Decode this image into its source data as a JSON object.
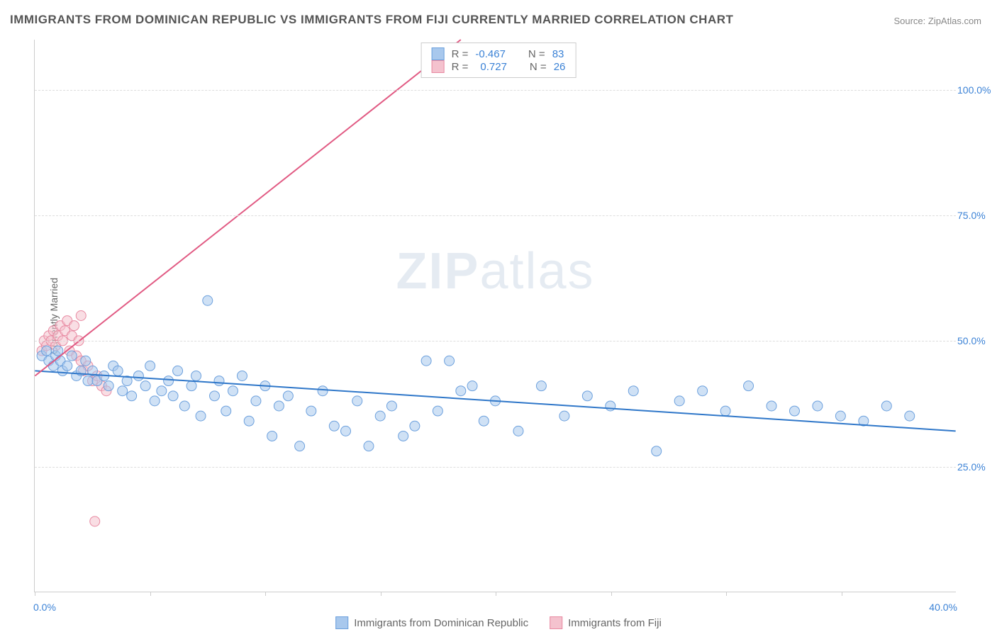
{
  "title": "IMMIGRANTS FROM DOMINICAN REPUBLIC VS IMMIGRANTS FROM FIJI CURRENTLY MARRIED CORRELATION CHART",
  "source": "Source: ZipAtlas.com",
  "ylabel": "Currently Married",
  "watermark_a": "ZIP",
  "watermark_b": "atlas",
  "chart": {
    "type": "scatter",
    "xlim": [
      0,
      40
    ],
    "ylim": [
      0,
      110
    ],
    "yticks": [
      25,
      50,
      75,
      100
    ],
    "ytick_labels": [
      "25.0%",
      "50.0%",
      "75.0%",
      "100.0%"
    ],
    "xtick_positions": [
      0,
      5,
      10,
      15,
      20,
      25,
      30,
      35
    ],
    "x_start_label": "0.0%",
    "x_end_label": "40.0%",
    "background_color": "#ffffff",
    "grid_color": "#dddddd",
    "axis_color": "#cccccc",
    "marker_radius": 7,
    "marker_opacity": 0.55,
    "line_width": 2,
    "series": [
      {
        "name": "Immigrants from Dominican Republic",
        "color_fill": "#a8c8ed",
        "color_stroke": "#6ca0dd",
        "line_color": "#2f77c9",
        "R": "-0.467",
        "N": "83",
        "trend": {
          "x1": 0,
          "y1": 44,
          "x2": 40,
          "y2": 32
        },
        "points": [
          [
            0.3,
            47
          ],
          [
            0.5,
            48
          ],
          [
            0.6,
            46
          ],
          [
            0.8,
            45
          ],
          [
            0.9,
            47
          ],
          [
            1.0,
            48
          ],
          [
            1.1,
            46
          ],
          [
            1.2,
            44
          ],
          [
            1.4,
            45
          ],
          [
            1.6,
            47
          ],
          [
            1.8,
            43
          ],
          [
            2.0,
            44
          ],
          [
            2.2,
            46
          ],
          [
            2.3,
            42
          ],
          [
            2.5,
            44
          ],
          [
            2.7,
            42
          ],
          [
            3.0,
            43
          ],
          [
            3.2,
            41
          ],
          [
            3.4,
            45
          ],
          [
            3.6,
            44
          ],
          [
            3.8,
            40
          ],
          [
            4.0,
            42
          ],
          [
            4.2,
            39
          ],
          [
            4.5,
            43
          ],
          [
            4.8,
            41
          ],
          [
            5.0,
            45
          ],
          [
            5.2,
            38
          ],
          [
            5.5,
            40
          ],
          [
            5.8,
            42
          ],
          [
            6.0,
            39
          ],
          [
            6.2,
            44
          ],
          [
            6.5,
            37
          ],
          [
            6.8,
            41
          ],
          [
            7.0,
            43
          ],
          [
            7.2,
            35
          ],
          [
            7.5,
            58
          ],
          [
            7.8,
            39
          ],
          [
            8.0,
            42
          ],
          [
            8.3,
            36
          ],
          [
            8.6,
            40
          ],
          [
            9.0,
            43
          ],
          [
            9.3,
            34
          ],
          [
            9.6,
            38
          ],
          [
            10.0,
            41
          ],
          [
            10.3,
            31
          ],
          [
            10.6,
            37
          ],
          [
            11.0,
            39
          ],
          [
            11.5,
            29
          ],
          [
            12.0,
            36
          ],
          [
            12.5,
            40
          ],
          [
            13.0,
            33
          ],
          [
            13.5,
            32
          ],
          [
            14.0,
            38
          ],
          [
            14.5,
            29
          ],
          [
            15.0,
            35
          ],
          [
            15.5,
            37
          ],
          [
            16.0,
            31
          ],
          [
            16.5,
            33
          ],
          [
            17.0,
            46
          ],
          [
            17.5,
            36
          ],
          [
            18.0,
            46
          ],
          [
            18.5,
            40
          ],
          [
            19.0,
            41
          ],
          [
            19.5,
            34
          ],
          [
            20.0,
            38
          ],
          [
            21.0,
            32
          ],
          [
            22.0,
            41
          ],
          [
            23.0,
            35
          ],
          [
            24.0,
            39
          ],
          [
            25.0,
            37
          ],
          [
            26.0,
            40
          ],
          [
            27.0,
            28
          ],
          [
            28.0,
            38
          ],
          [
            29.0,
            40
          ],
          [
            30.0,
            36
          ],
          [
            31.0,
            41
          ],
          [
            32.0,
            37
          ],
          [
            33.0,
            36
          ],
          [
            34.0,
            37
          ],
          [
            35.0,
            35
          ],
          [
            36.0,
            34
          ],
          [
            37.0,
            37
          ],
          [
            38.0,
            35
          ]
        ]
      },
      {
        "name": "Immigrants from Fiji",
        "color_fill": "#f4c2ce",
        "color_stroke": "#e88aa2",
        "line_color": "#e15a83",
        "R": "0.727",
        "N": "26",
        "trend": {
          "x1": 0,
          "y1": 43,
          "x2": 18.5,
          "y2": 110
        },
        "points": [
          [
            0.3,
            48
          ],
          [
            0.4,
            50
          ],
          [
            0.5,
            49
          ],
          [
            0.6,
            51
          ],
          [
            0.7,
            50
          ],
          [
            0.8,
            52
          ],
          [
            0.9,
            49
          ],
          [
            1.0,
            51
          ],
          [
            1.1,
            53
          ],
          [
            1.2,
            50
          ],
          [
            1.3,
            52
          ],
          [
            1.4,
            54
          ],
          [
            1.5,
            48
          ],
          [
            1.6,
            51
          ],
          [
            1.7,
            53
          ],
          [
            1.8,
            47
          ],
          [
            1.9,
            50
          ],
          [
            2.0,
            46
          ],
          [
            2.1,
            44
          ],
          [
            2.3,
            45
          ],
          [
            2.5,
            42
          ],
          [
            2.7,
            43
          ],
          [
            2.9,
            41
          ],
          [
            3.1,
            40
          ],
          [
            2.0,
            55
          ],
          [
            2.6,
            14
          ]
        ]
      }
    ]
  },
  "legend_top": {
    "r_label": "R =",
    "n_label": "N ="
  },
  "legend_bottom": {
    "series1": "Immigrants from Dominican Republic",
    "series2": "Immigrants from Fiji"
  },
  "colors": {
    "text_muted": "#666666",
    "text_value": "#3b82d6",
    "blue_fill": "#a8c8ed",
    "blue_stroke": "#6ca0dd",
    "pink_fill": "#f4c2ce",
    "pink_stroke": "#e88aa2"
  }
}
